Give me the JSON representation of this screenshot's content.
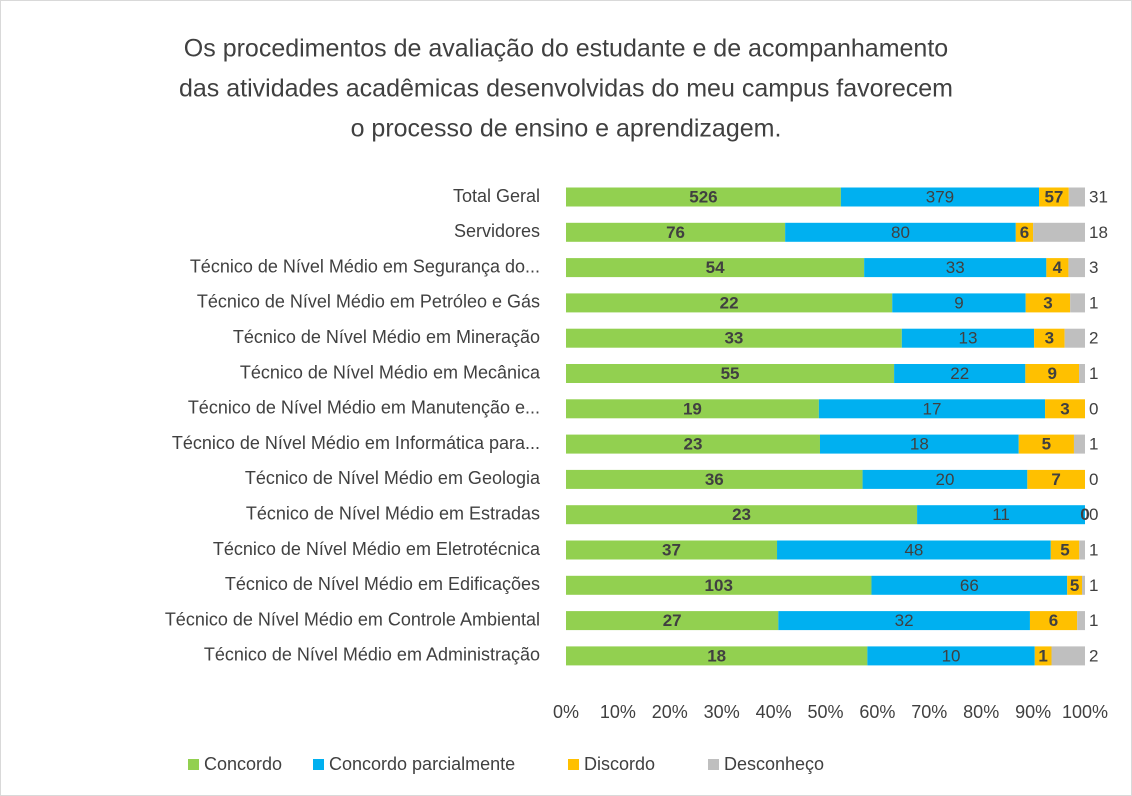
{
  "chart_data": {
    "type": "bar",
    "orientation": "horizontal",
    "stacked": "percent",
    "title": [
      "Os procedimentos de avaliação do estudante e de acompanhamento",
      "das atividades acadêmicas desenvolvidas do meu campus favorecem",
      "o processo de ensino e aprendizagem."
    ],
    "categories": [
      "Total Geral",
      "Servidores",
      "Técnico de Nível Médio em Segurança do...",
      "Técnico de Nível Médio em Petróleo e Gás",
      "Técnico de Nível Médio em Mineração",
      "Técnico de Nível Médio em Mecânica",
      "Técnico de Nível Médio em Manutenção e...",
      "Técnico de Nível Médio em Informática para...",
      "Técnico de Nível Médio em Geologia",
      "Técnico de Nível Médio em Estradas",
      "Técnico de Nível Médio em Eletrotécnica",
      "Técnico de Nível Médio em Edificações",
      "Técnico de Nível Médio em Controle Ambiental",
      "Técnico de Nível Médio em Administração"
    ],
    "series": [
      {
        "name": "Concordo",
        "color": "#92d050",
        "values": [
          526,
          76,
          54,
          22,
          33,
          55,
          19,
          23,
          36,
          23,
          37,
          103,
          27,
          18
        ]
      },
      {
        "name": "Concordo parcialmente",
        "color": "#00b0f0",
        "values": [
          379,
          80,
          33,
          9,
          13,
          22,
          17,
          18,
          20,
          11,
          48,
          66,
          32,
          10
        ]
      },
      {
        "name": "Discordo",
        "color": "#ffc000",
        "values": [
          57,
          6,
          4,
          3,
          3,
          9,
          3,
          5,
          7,
          0,
          5,
          5,
          6,
          1
        ]
      },
      {
        "name": "Desconheço",
        "color": "#bfbfbf",
        "values": [
          31,
          18,
          3,
          1,
          2,
          1,
          0,
          1,
          0,
          0,
          1,
          1,
          1,
          2
        ]
      }
    ],
    "xlim": [
      0,
      100
    ],
    "xticks": [
      {
        "value": 0,
        "label": "0%"
      },
      {
        "value": 10,
        "label": "10%"
      },
      {
        "value": 20,
        "label": "20%"
      },
      {
        "value": 30,
        "label": "30%"
      },
      {
        "value": 40,
        "label": "40%"
      },
      {
        "value": 50,
        "label": "50%"
      },
      {
        "value": 60,
        "label": "60%"
      },
      {
        "value": 70,
        "label": "70%"
      },
      {
        "value": 80,
        "label": "80%"
      },
      {
        "value": 90,
        "label": "90%"
      },
      {
        "value": 100,
        "label": "100%"
      }
    ],
    "legend": "bottom"
  }
}
